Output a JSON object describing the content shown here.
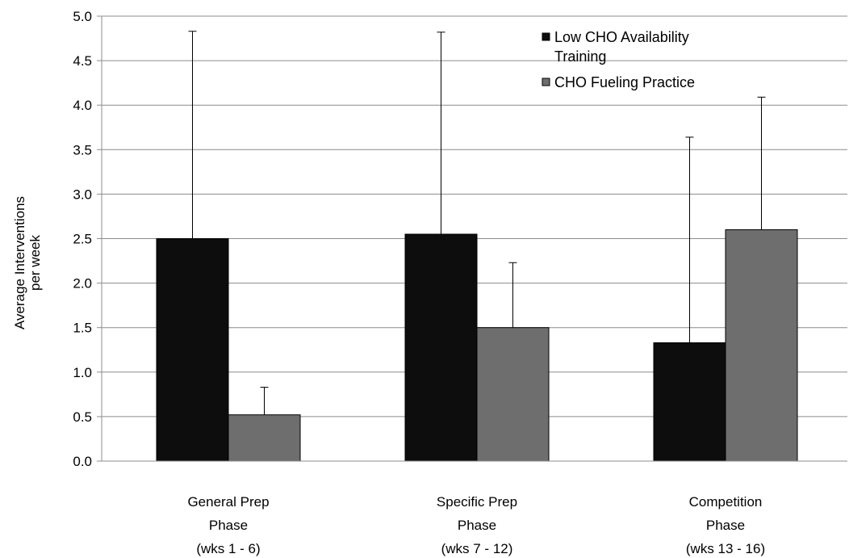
{
  "chart_data": {
    "type": "bar",
    "title": "",
    "ylabel_lines": [
      "Average Interventions",
      "per week"
    ],
    "xlabel": "",
    "ylim": [
      0,
      5.0
    ],
    "yticks": [
      "0.0",
      "0.5",
      "1.0",
      "1.5",
      "2.0",
      "2.5",
      "3.0",
      "3.5",
      "4.0",
      "4.5",
      "5.0"
    ],
    "grid": true,
    "legend_position": "top-right",
    "categories": [
      [
        "General Prep",
        "Phase",
        "(wks 1 - 6)"
      ],
      [
        "Specific Prep",
        "Phase",
        "(wks 7 - 12)"
      ],
      [
        "Competition",
        "Phase",
        "(wks 13 - 16)"
      ]
    ],
    "series": [
      {
        "name_lines": [
          "Low CHO Availability",
          "Training"
        ],
        "color": "#0d0d0d",
        "values": [
          2.5,
          2.55,
          1.33
        ],
        "error_upper": [
          4.83,
          4.82,
          3.64
        ]
      },
      {
        "name_lines": [
          "CHO Fueling Practice"
        ],
        "color": "#6e6e6e",
        "values": [
          0.52,
          1.5,
          2.6
        ],
        "error_upper": [
          0.83,
          2.23,
          4.09
        ]
      }
    ]
  }
}
